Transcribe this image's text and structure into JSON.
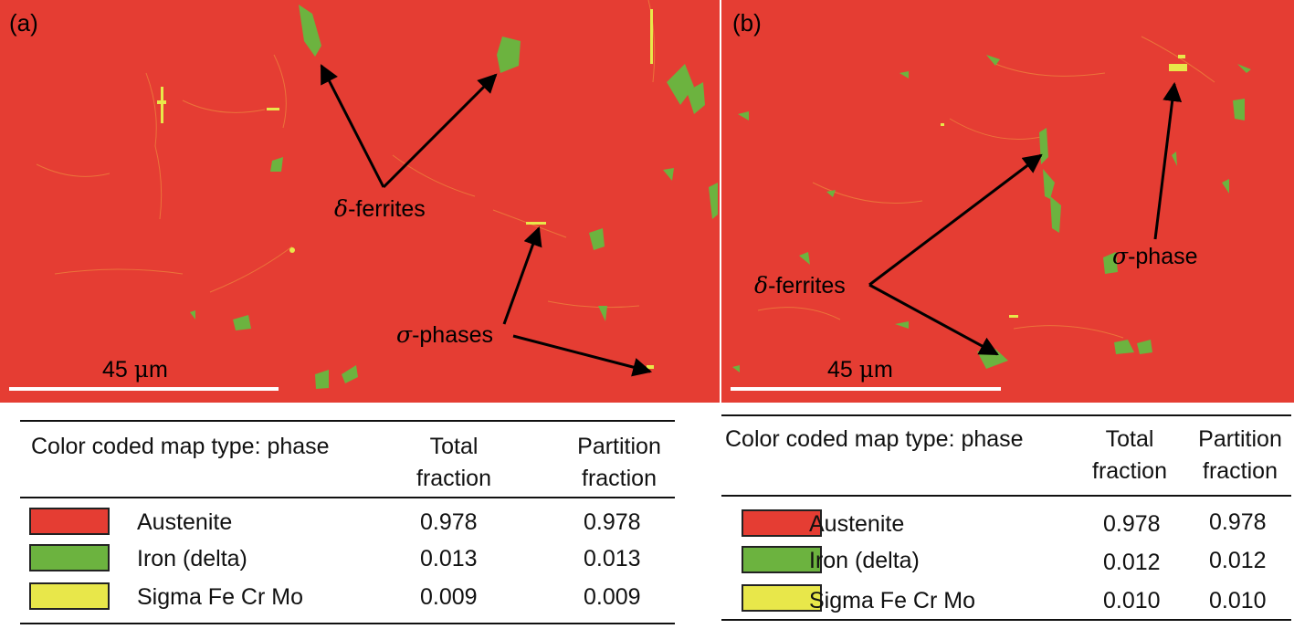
{
  "colors": {
    "austenite": "#e53d33",
    "delta_ferrite": "#6cb33f",
    "sigma": "#e8e74a",
    "scale_bar": "#ffffff",
    "arrow": "#000000"
  },
  "panels": {
    "a": {
      "label": "(a)",
      "delta_label": "δ",
      "delta_suffix": "-ferrites",
      "sigma_label": "σ",
      "sigma_suffix": "-phases",
      "scale_num": "45 ",
      "scale_unit": "μ",
      "scale_m": "m",
      "table": {
        "header_col1": "Color coded map type: phase",
        "header_col2_line1": "Total",
        "header_col2_line2": "fraction",
        "header_col3_line1": "Partition",
        "header_col3_line2": "fraction",
        "rows": [
          {
            "swatch_color": "#e53d33",
            "name": "Austenite",
            "total": "0.978",
            "partition": "0.978"
          },
          {
            "swatch_color": "#6cb33f",
            "name": "Iron (delta)",
            "total": "0.013",
            "partition": "0.013"
          },
          {
            "swatch_color": "#e8e74a",
            "name": "Sigma Fe Cr Mo",
            "total": "0.009",
            "partition": "0.009"
          }
        ]
      }
    },
    "b": {
      "label": "(b)",
      "delta_label": "δ",
      "delta_suffix": "-ferrites",
      "sigma_label": "σ",
      "sigma_suffix": "-phase",
      "scale_num": "45 ",
      "scale_unit": "μ",
      "scale_m": "m",
      "table": {
        "header_col1": "Color coded map type: phase",
        "header_col2_line1": "Total",
        "header_col2_line2": "fraction",
        "header_col3_line1": "Partition",
        "header_col3_line2": "fraction",
        "rows": [
          {
            "swatch_color": "#e53d33",
            "name": "Austenite",
            "total": "0.978",
            "partition": "0.978"
          },
          {
            "swatch_color": "#6cb33f",
            "name": "Iron (delta)",
            "total": "0.012",
            "partition": "0.012"
          },
          {
            "swatch_color": "#e8e74a",
            "name": "Sigma Fe Cr Mo",
            "total": "0.010",
            "partition": "0.010"
          }
        ]
      }
    }
  }
}
